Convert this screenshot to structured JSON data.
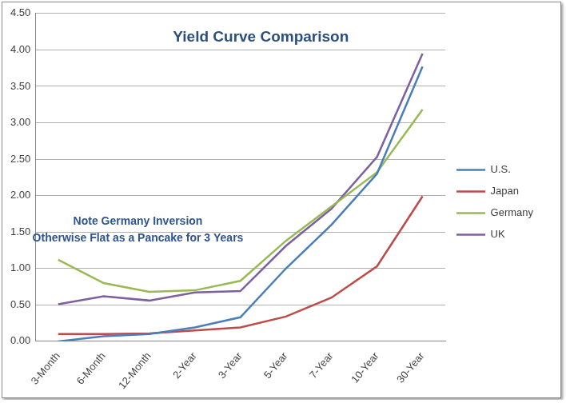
{
  "chart_data": {
    "type": "line",
    "title": "Yield Curve Comparison",
    "annotations": [
      "Note Germany Inversion",
      "Otherwise Flat as a Pancake for 3 Years"
    ],
    "categories": [
      "3-Month",
      "6-Month",
      "12-Month",
      "2-Year",
      "3-Year",
      "5-Year",
      "7-Year",
      "10-Year",
      "30-Year"
    ],
    "series": [
      {
        "name": "U.S.",
        "color": "#4a7ebb",
        "values": [
          0.0,
          0.07,
          0.1,
          0.19,
          0.33,
          1.0,
          1.6,
          2.3,
          3.77
        ]
      },
      {
        "name": "Japan",
        "color": "#be4b48",
        "values": [
          0.1,
          0.1,
          0.11,
          0.15,
          0.19,
          0.34,
          0.6,
          1.03,
          1.99
        ]
      },
      {
        "name": "Germany",
        "color": "#98b954",
        "values": [
          1.12,
          0.8,
          0.68,
          0.7,
          0.83,
          1.38,
          1.85,
          2.32,
          3.18
        ]
      },
      {
        "name": "UK",
        "color": "#7d60a0",
        "values": [
          0.51,
          0.62,
          0.56,
          0.67,
          0.69,
          1.31,
          1.82,
          2.53,
          3.95
        ]
      }
    ],
    "ylim": [
      0,
      4.5
    ],
    "yticks": [
      {
        "value": 0,
        "label": "0.00"
      },
      {
        "value": 0.5,
        "label": "0.50"
      },
      {
        "value": 1,
        "label": "1.00"
      },
      {
        "value": 1.5,
        "label": "1.50"
      },
      {
        "value": 2,
        "label": "2.00"
      },
      {
        "value": 2.5,
        "label": "2.50"
      },
      {
        "value": 3,
        "label": "3.00"
      },
      {
        "value": 3.5,
        "label": "3.50"
      },
      {
        "value": 4,
        "label": "4.00"
      },
      {
        "value": 4.5,
        "label": "4.50"
      }
    ],
    "grid": true,
    "legend": "right"
  }
}
